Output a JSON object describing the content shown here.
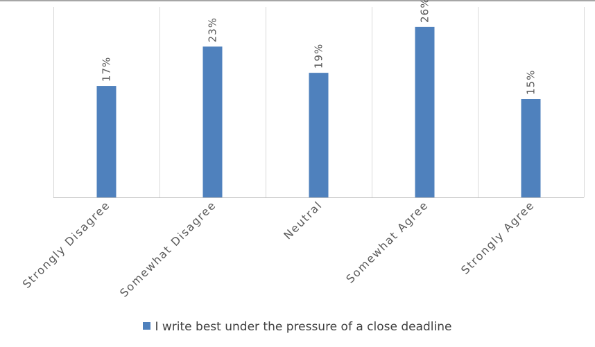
{
  "chart_data": {
    "type": "bar",
    "categories": [
      "Strongly Disagree",
      "Somewhat Disagree",
      "Neutral",
      "Somewhat Agree",
      "Strongly Agree"
    ],
    "series": [
      {
        "name": "I write best under the pressure of a close deadline",
        "values": [
          17,
          23,
          19,
          26,
          15
        ],
        "labels": [
          "17%",
          "23%",
          "19%",
          "26%",
          "15%"
        ]
      }
    ],
    "ylim": [
      0,
      30
    ],
    "grid": "vertical category separators",
    "legend_position": "bottom"
  },
  "colors": {
    "bar": "#4f81bd",
    "grid": "#d9d9d9",
    "axis": "#bfbfbf",
    "text": "#595959"
  }
}
